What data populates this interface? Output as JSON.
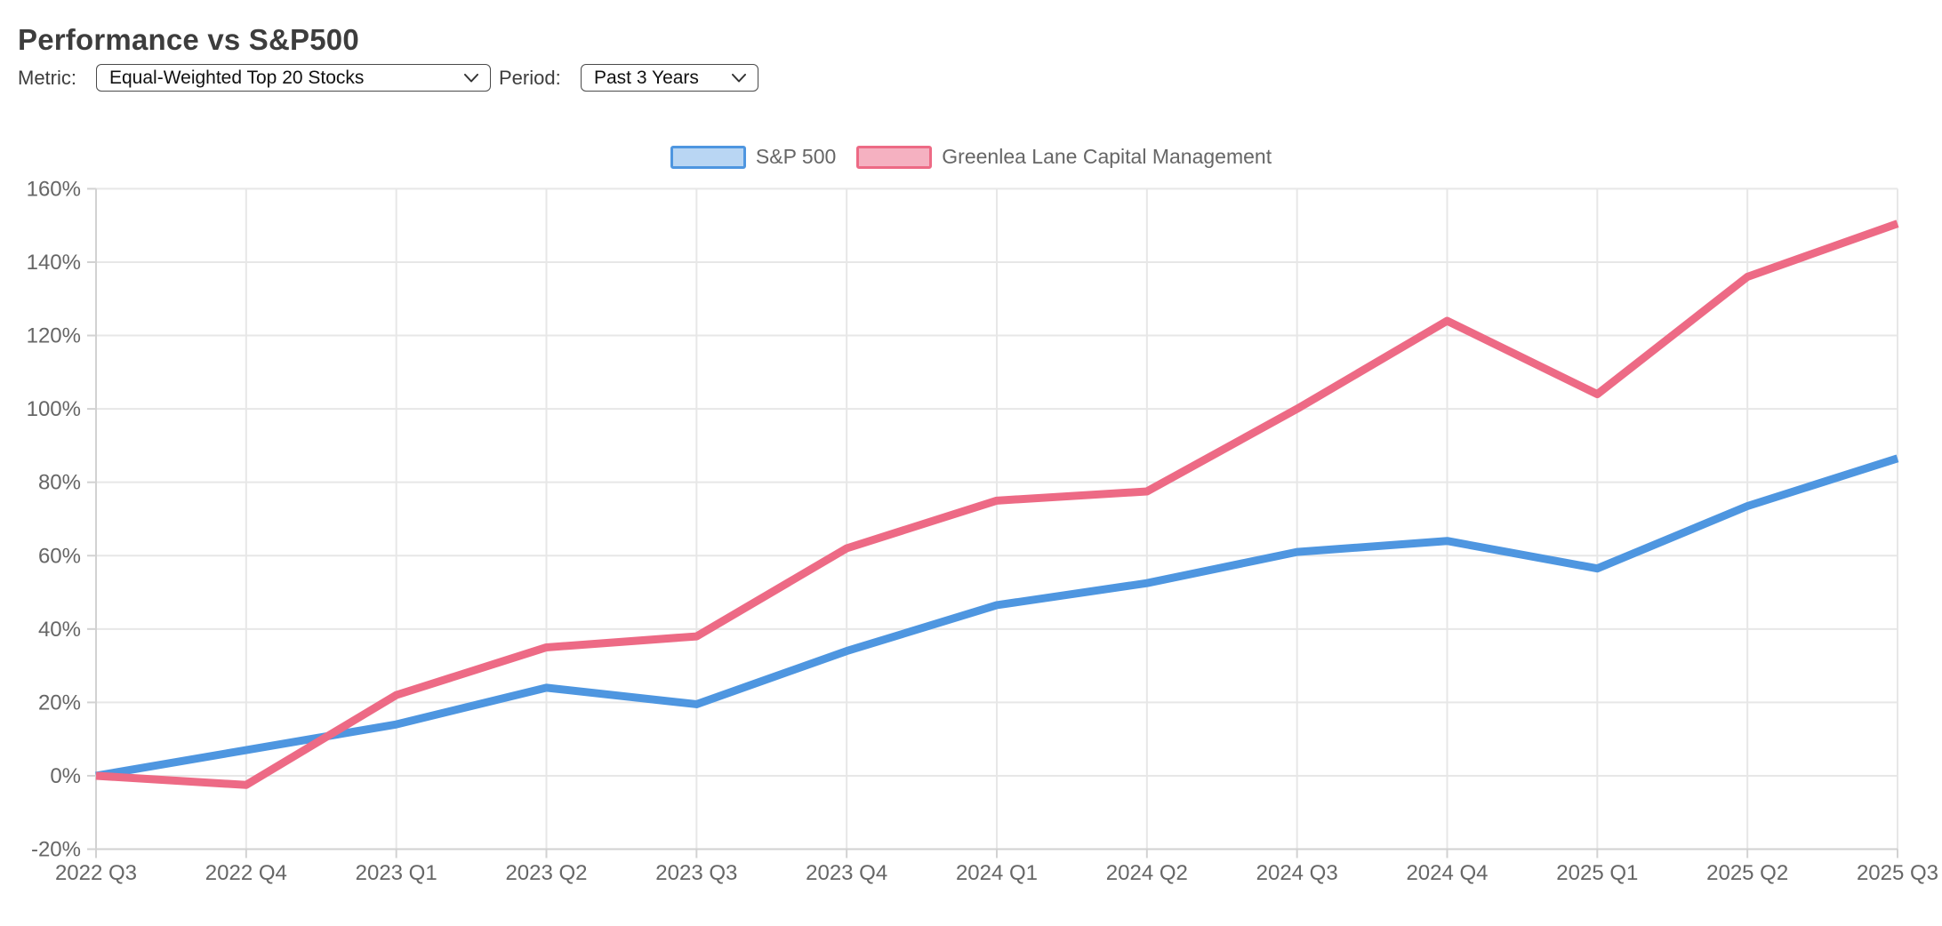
{
  "page": {
    "title": "Performance vs S&P500"
  },
  "controls": {
    "metric_label": "Metric:",
    "metric_value": "Equal-Weighted Top 20 Stocks",
    "period_label": "Period:",
    "period_value": "Past 3 Years"
  },
  "legend": {
    "items": [
      {
        "label": "S&P 500",
        "color": "#4e96e0",
        "fill": "#b9d6f3"
      },
      {
        "label": "Greenlea Lane Capital Management",
        "color": "#ed6a85",
        "fill": "#f5b1c1"
      }
    ]
  },
  "chart_data": {
    "type": "line",
    "title": "Performance vs S&P500",
    "categories": [
      "2022 Q3",
      "2022 Q4",
      "2023 Q1",
      "2023 Q2",
      "2023 Q3",
      "2023 Q4",
      "2024 Q1",
      "2024 Q2",
      "2024 Q3",
      "2024 Q4",
      "2025 Q1",
      "2025 Q2",
      "2025 Q3"
    ],
    "series": [
      {
        "name": "S&P 500",
        "color": "#4e96e0",
        "values": [
          0,
          7,
          14,
          24,
          19.5,
          34,
          46.5,
          52.5,
          61,
          64,
          56.5,
          73.5,
          86.5
        ]
      },
      {
        "name": "Greenlea Lane Capital Management",
        "color": "#ed6a85",
        "values": [
          0,
          -2.5,
          22,
          35,
          38,
          62,
          75,
          77.5,
          100,
          124,
          104,
          136,
          150.5
        ]
      }
    ],
    "ylim": [
      -20,
      160
    ],
    "ytick_step": 20,
    "ytick_suffix": "%",
    "ytick_labels": [
      "160%",
      "140%",
      "120%",
      "100%",
      "80%",
      "60%",
      "40%",
      "20%",
      "0%",
      "-20%"
    ],
    "xlabel": "",
    "ylabel": "",
    "grid": true,
    "legend_position": "top",
    "colors": {
      "gridline": "#e7e7e7",
      "axis_border": "#d2d2d2",
      "tick_text": "#666666"
    }
  }
}
